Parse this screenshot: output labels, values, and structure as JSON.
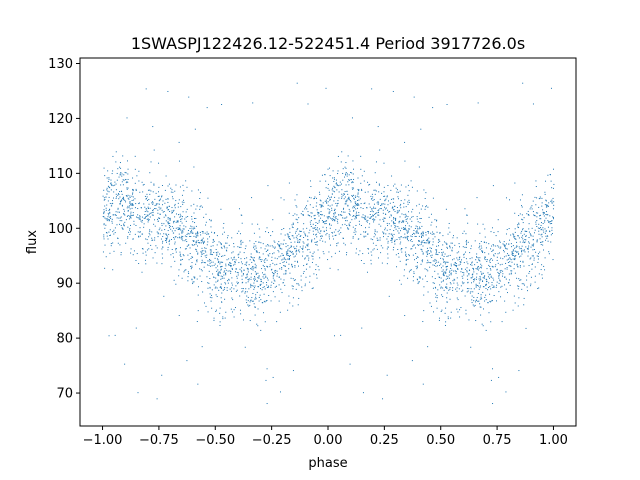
{
  "chart_data": {
    "type": "scatter",
    "title": "1SWASPJ122426.12-522451.4 Period 3917726.0s",
    "xlabel": "phase",
    "ylabel": "flux",
    "xlim": [
      -1.1,
      1.1
    ],
    "ylim": [
      64,
      131
    ],
    "xticks": [
      -1.0,
      -0.75,
      -0.5,
      -0.25,
      0.0,
      0.25,
      0.5,
      0.75,
      1.0
    ],
    "xtick_labels": [
      "−1.00",
      "−0.75",
      "−0.50",
      "−0.25",
      "0.00",
      "0.25",
      "0.50",
      "0.75",
      "1.00"
    ],
    "yticks": [
      70,
      80,
      90,
      100,
      110,
      120,
      130
    ],
    "ytick_labels": [
      "70",
      "80",
      "90",
      "100",
      "110",
      "120",
      "130"
    ],
    "grid": false,
    "marker_color": "#1f77b4",
    "series": [
      {
        "profile_phase": [
          0.0,
          0.05,
          0.1,
          0.15,
          0.2,
          0.25,
          0.3,
          0.35,
          0.4,
          0.45,
          0.5,
          0.55,
          0.6,
          0.65,
          0.7,
          0.75,
          0.8,
          0.85,
          0.9,
          0.95,
          1.0
        ],
        "profile_flux": [
          103,
          104,
          104,
          103,
          102,
          101,
          100,
          99,
          98,
          96,
          93,
          92,
          93,
          91,
          92,
          93,
          95,
          96,
          98,
          100,
          103
        ],
        "scatter_spread": 5
      }
    ]
  }
}
